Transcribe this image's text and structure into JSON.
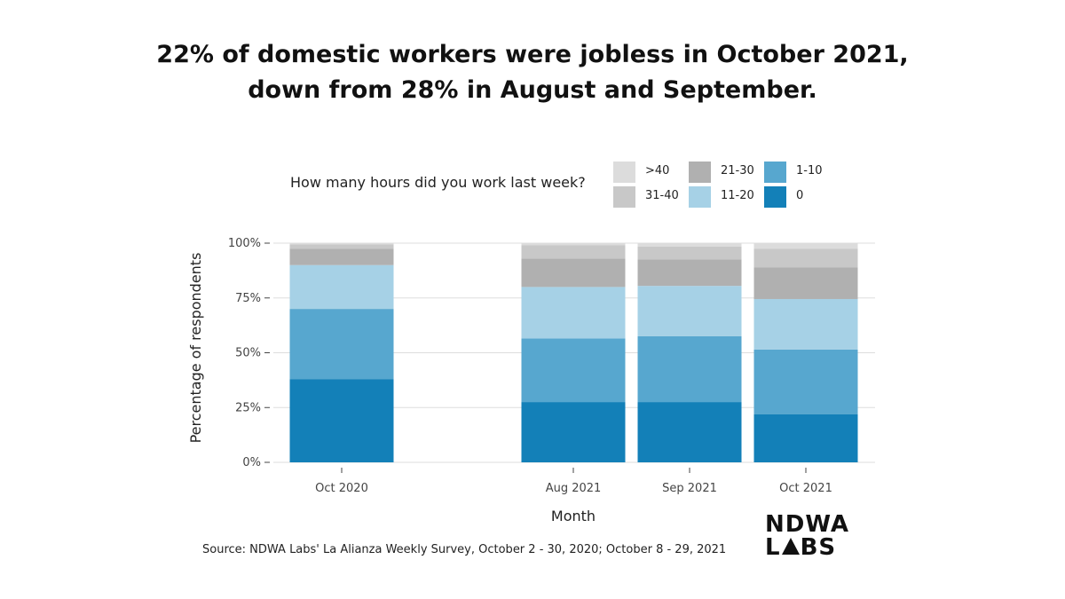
{
  "title": {
    "line1": "22% of domestic workers were jobless in October 2021,",
    "line2": "down from 28% in August and September."
  },
  "legend": {
    "title": "How many hours did you work last week?"
  },
  "footnote": "Source: NDWA Labs' La Alianza Weekly Survey, October 2 - 30, 2020; October 8 - 29, 2021",
  "logo": {
    "line1": "NDWA",
    "line2_left": "L",
    "line2_right": "BS"
  },
  "chart_data": {
    "type": "bar",
    "stacked": true,
    "categories": [
      "Oct 2020",
      "Aug 2021",
      "Sep 2021",
      "Oct 2021"
    ],
    "xlabel": "Month",
    "ylabel": "Percentage of respondents",
    "ylim": [
      0,
      100
    ],
    "yticks": [
      "0%",
      "25%",
      "50%",
      "75%",
      "100%"
    ],
    "grid": true,
    "legend_position": "top",
    "series": [
      {
        "name": "0",
        "color": "#1380b8",
        "values": [
          38,
          27.5,
          27.5,
          22
        ]
      },
      {
        "name": "1-10",
        "color": "#57a7cf",
        "values": [
          32,
          29,
          30,
          29.5
        ]
      },
      {
        "name": "11-20",
        "color": "#a6d1e6",
        "values": [
          20,
          23.5,
          23,
          23
        ]
      },
      {
        "name": "21-30",
        "color": "#b0b0b0",
        "values": [
          7.5,
          13,
          12,
          14.5
        ]
      },
      {
        "name": "31-40",
        "color": "#c8c8c8",
        "values": [
          2,
          6,
          6,
          8.5
        ]
      },
      {
        "name": ">40",
        "color": "#dcdcdc",
        "values": [
          0.5,
          1,
          1.5,
          2.5
        ]
      }
    ]
  }
}
